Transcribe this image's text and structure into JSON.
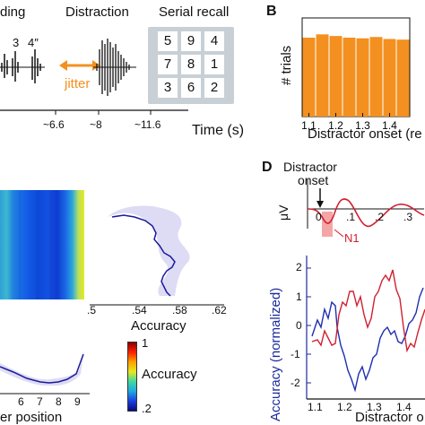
{
  "panel_a": {
    "encoding_label": "ding",
    "cue_labels": [
      "3",
      "4″"
    ],
    "distraction_label": "Distraction",
    "jitter_label": "jitter",
    "recall_label": "Serial recall",
    "recall_grid": [
      "5",
      "9",
      "4",
      "7",
      "8",
      "1",
      "3",
      "6",
      "2"
    ],
    "time_ticks": [
      "~6.6",
      "~8",
      "~11.6"
    ],
    "time_axis_label": "Time (s)"
  },
  "panel_b": {
    "letter": "B",
    "colors": {
      "bar": "#f39020"
    }
  },
  "panel_c": {
    "accuracy_axis_label": "Accuracy",
    "accuracy_ticks": [
      ".5",
      ".54",
      ".58",
      ".62"
    ],
    "position_ticks": [
      "6",
      "7",
      "8",
      "9"
    ],
    "position_axis_label": "er position",
    "colorbar_label": "Accuracy",
    "colorbar_top": "1",
    "colorbar_bottom": ".2"
  },
  "panel_d": {
    "letter": "D",
    "onset_label_1": "Distractor",
    "onset_label_2": "onset",
    "uv_label": "μV",
    "n1_label": "N1",
    "erp_ticks": [
      "0",
      ".1",
      ".2",
      ".3"
    ],
    "accuracy_axis_label": "Accuracy (normalized)",
    "y_ticks": [
      "2",
      "1",
      "0",
      "-1",
      "-2"
    ],
    "x_ticks": [
      "1.1",
      "1.2",
      "1.3",
      "1.4"
    ],
    "x_axis_label": "Distractor o",
    "colors": {
      "series_blue": "#1f2fb0",
      "series_red": "#d02030"
    }
  },
  "chart_data": [
    {
      "type": "bar",
      "categories": [
        "1.1",
        "1.15",
        "1.2",
        "1.25",
        "1.3",
        "1.35",
        "1.4",
        "1.45"
      ],
      "values": [
        240,
        250,
        245,
        240,
        238,
        242,
        236,
        234
      ],
      "title": "",
      "xlabel": "Distractor onset (re",
      "ylabel": "# trials",
      "xtick_labels": [
        "1.1",
        "1.2",
        "1.3",
        "1.4"
      ],
      "ylim": [
        0,
        300
      ]
    }
  ]
}
